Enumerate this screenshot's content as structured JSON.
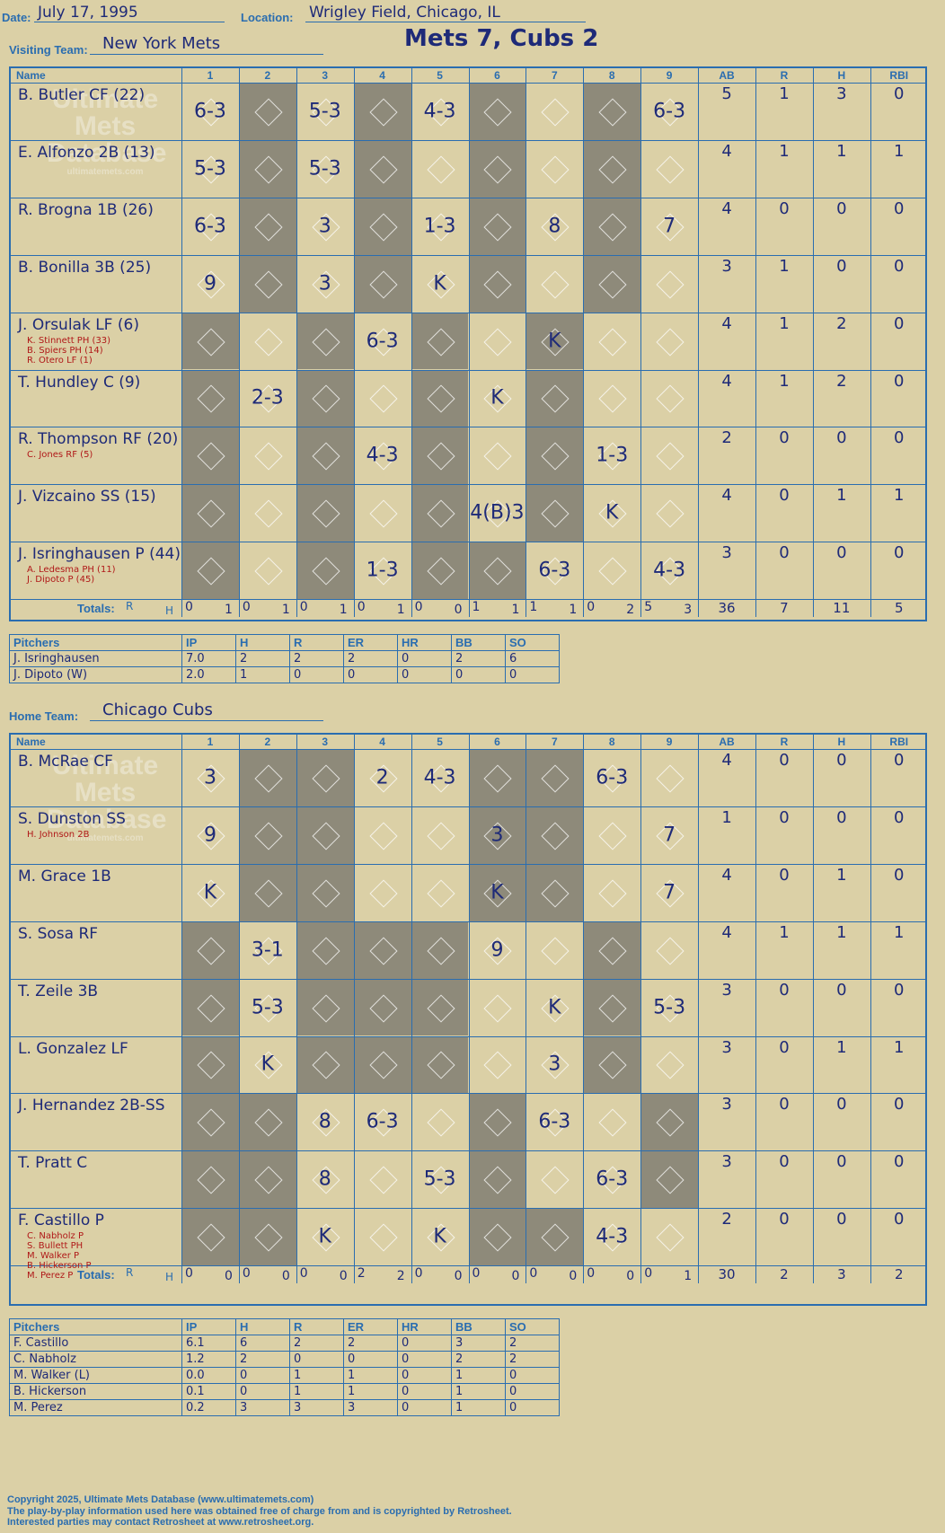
{
  "header": {
    "date_label": "Date:",
    "date": "July 17, 1995",
    "location_label": "Location:",
    "location": "Wrigley Field, Chicago, IL",
    "title": "Mets 7, Cubs 2"
  },
  "visiting": {
    "team_label": "Visiting Team:",
    "team": "New York Mets",
    "players": [
      {
        "name": "B. Butler CF (22)",
        "subs": [],
        "ab": "5",
        "r": "1",
        "h": "3",
        "rbi": "0"
      },
      {
        "name": "E. Alfonzo 2B (13)",
        "subs": [],
        "ab": "4",
        "r": "1",
        "h": "1",
        "rbi": "1"
      },
      {
        "name": "R. Brogna 1B (26)",
        "subs": [],
        "ab": "4",
        "r": "0",
        "h": "0",
        "rbi": "0"
      },
      {
        "name": "B. Bonilla 3B (25)",
        "subs": [],
        "ab": "3",
        "r": "1",
        "h": "0",
        "rbi": "0"
      },
      {
        "name": "J. Orsulak LF (6)",
        "subs": [
          "K. Stinnett PH (33)",
          "B. Spiers PH (14)",
          "R. Otero LF (1)"
        ],
        "ab": "4",
        "r": "1",
        "h": "2",
        "rbi": "0"
      },
      {
        "name": "T. Hundley C (9)",
        "subs": [],
        "ab": "4",
        "r": "1",
        "h": "2",
        "rbi": "0"
      },
      {
        "name": "R. Thompson RF (20)",
        "subs": [
          "C. Jones RF (5)"
        ],
        "ab": "2",
        "r": "0",
        "h": "0",
        "rbi": "0"
      },
      {
        "name": "J. Vizcaino SS (15)",
        "subs": [],
        "ab": "4",
        "r": "0",
        "h": "1",
        "rbi": "1"
      },
      {
        "name": "J. Isringhausen P (44)",
        "subs": [
          "A. Ledesma PH (11)",
          "J. Dipoto P (45)"
        ],
        "ab": "3",
        "r": "0",
        "h": "0",
        "rbi": "0"
      }
    ],
    "plays": [
      [
        0,
        0,
        "6-3"
      ],
      [
        0,
        2,
        "5-3"
      ],
      [
        0,
        4,
        "4-3"
      ],
      [
        0,
        8,
        "6-3"
      ],
      [
        1,
        0,
        "5-3"
      ],
      [
        1,
        2,
        "5-3"
      ],
      [
        2,
        0,
        "6-3"
      ],
      [
        2,
        2,
        "3"
      ],
      [
        2,
        4,
        "1-3"
      ],
      [
        2,
        6,
        "8"
      ],
      [
        2,
        8,
        "7"
      ],
      [
        3,
        0,
        "9"
      ],
      [
        3,
        2,
        "3"
      ],
      [
        3,
        4,
        "K"
      ],
      [
        4,
        3,
        "6-3"
      ],
      [
        4,
        6,
        "K"
      ],
      [
        5,
        1,
        "2-3"
      ],
      [
        5,
        5,
        "K"
      ],
      [
        6,
        3,
        "4-3"
      ],
      [
        6,
        7,
        "1-3"
      ],
      [
        7,
        5,
        "4(B)3"
      ],
      [
        7,
        7,
        "K"
      ],
      [
        8,
        3,
        "1-3"
      ],
      [
        8,
        6,
        "6-3"
      ],
      [
        8,
        8,
        "4-3"
      ]
    ],
    "totals": {
      "label": "Totals:",
      "ab": "36",
      "r": "7",
      "h": "11",
      "rbi": "5",
      "innings": [
        [
          "0",
          "1"
        ],
        [
          "0",
          "1"
        ],
        [
          "0",
          "1"
        ],
        [
          "0",
          "1"
        ],
        [
          "0",
          "0"
        ],
        [
          "1",
          "1"
        ],
        [
          "1",
          "1"
        ],
        [
          "0",
          "2"
        ],
        [
          "5",
          "3"
        ]
      ]
    },
    "pitchers": [
      {
        "name": "J. Isringhausen",
        "ip": "7.0",
        "h": "2",
        "r": "2",
        "er": "2",
        "hr": "0",
        "bb": "2",
        "so": "6"
      },
      {
        "name": "J. Dipoto (W)",
        "ip": "2.0",
        "h": "1",
        "r": "0",
        "er": "0",
        "hr": "0",
        "bb": "0",
        "so": "0"
      }
    ]
  },
  "home": {
    "team_label": "Home Team:",
    "team": "Chicago Cubs",
    "players": [
      {
        "name": "B. McRae CF",
        "subs": [],
        "ab": "4",
        "r": "0",
        "h": "0",
        "rbi": "0"
      },
      {
        "name": "S. Dunston SS",
        "subs": [
          "H. Johnson 2B"
        ],
        "ab": "1",
        "r": "0",
        "h": "0",
        "rbi": "0"
      },
      {
        "name": "M. Grace 1B",
        "subs": [],
        "ab": "4",
        "r": "0",
        "h": "1",
        "rbi": "0"
      },
      {
        "name": "S. Sosa RF",
        "subs": [],
        "ab": "4",
        "r": "1",
        "h": "1",
        "rbi": "1"
      },
      {
        "name": "T. Zeile 3B",
        "subs": [],
        "ab": "3",
        "r": "0",
        "h": "0",
        "rbi": "0"
      },
      {
        "name": "L. Gonzalez LF",
        "subs": [],
        "ab": "3",
        "r": "0",
        "h": "1",
        "rbi": "1"
      },
      {
        "name": "J. Hernandez 2B-SS",
        "subs": [],
        "ab": "3",
        "r": "0",
        "h": "0",
        "rbi": "0"
      },
      {
        "name": "T. Pratt C",
        "subs": [],
        "ab": "3",
        "r": "0",
        "h": "0",
        "rbi": "0"
      },
      {
        "name": "F. Castillo P",
        "subs": [
          "C. Nabholz P",
          "S. Bullett PH",
          "M. Walker P",
          "B. Hickerson P",
          "M. Perez P"
        ],
        "ab": "2",
        "r": "0",
        "h": "0",
        "rbi": "0"
      }
    ],
    "plays": [
      [
        0,
        0,
        "3"
      ],
      [
        0,
        3,
        "2"
      ],
      [
        0,
        4,
        "4-3"
      ],
      [
        0,
        7,
        "6-3"
      ],
      [
        1,
        0,
        "9"
      ],
      [
        1,
        5,
        "3"
      ],
      [
        1,
        8,
        "7"
      ],
      [
        2,
        0,
        "K"
      ],
      [
        2,
        5,
        "K"
      ],
      [
        2,
        8,
        "7"
      ],
      [
        3,
        1,
        "3-1"
      ],
      [
        3,
        5,
        "9"
      ],
      [
        4,
        1,
        "5-3"
      ],
      [
        4,
        6,
        "K"
      ],
      [
        4,
        8,
        "5-3"
      ],
      [
        5,
        1,
        "K"
      ],
      [
        5,
        6,
        "3"
      ],
      [
        6,
        2,
        "8"
      ],
      [
        6,
        3,
        "6-3"
      ],
      [
        6,
        6,
        "6-3"
      ],
      [
        7,
        2,
        "8"
      ],
      [
        7,
        4,
        "5-3"
      ],
      [
        7,
        7,
        "6-3"
      ],
      [
        8,
        2,
        "K"
      ],
      [
        8,
        4,
        "K"
      ],
      [
        8,
        7,
        "4-3"
      ]
    ],
    "totals": {
      "label": "Totals:",
      "ab": "30",
      "r": "2",
      "h": "3",
      "rbi": "2",
      "innings": [
        [
          "0",
          "0"
        ],
        [
          "0",
          "0"
        ],
        [
          "0",
          "0"
        ],
        [
          "2",
          "2"
        ],
        [
          "0",
          "0"
        ],
        [
          "0",
          "0"
        ],
        [
          "0",
          "0"
        ],
        [
          "0",
          "0"
        ],
        [
          "0",
          "1"
        ]
      ]
    },
    "pitchers": [
      {
        "name": "F. Castillo",
        "ip": "6.1",
        "h": "6",
        "r": "2",
        "er": "2",
        "hr": "0",
        "bb": "3",
        "so": "2"
      },
      {
        "name": "C. Nabholz",
        "ip": "1.2",
        "h": "2",
        "r": "0",
        "er": "0",
        "hr": "0",
        "bb": "2",
        "so": "2"
      },
      {
        "name": "M. Walker (L)",
        "ip": "0.0",
        "h": "0",
        "r": "1",
        "er": "1",
        "hr": "0",
        "bb": "1",
        "so": "0"
      },
      {
        "name": "B. Hickerson",
        "ip": "0.1",
        "h": "0",
        "r": "1",
        "er": "1",
        "hr": "0",
        "bb": "1",
        "so": "0"
      },
      {
        "name": "M. Perez",
        "ip": "0.2",
        "h": "3",
        "r": "3",
        "er": "3",
        "hr": "0",
        "bb": "1",
        "so": "0"
      }
    ]
  },
  "columns": {
    "name": "Name",
    "innings": [
      "1",
      "2",
      "3",
      "4",
      "5",
      "6",
      "7",
      "8",
      "9"
    ],
    "ab": "AB",
    "r": "R",
    "h": "H",
    "rbi": "RBI",
    "tot_r": "R",
    "tot_h": "H"
  },
  "pitcher_columns": {
    "name": "Pitchers",
    "ip": "IP",
    "h": "H",
    "r": "R",
    "er": "ER",
    "hr": "HR",
    "bb": "BB",
    "so": "SO"
  },
  "watermark": {
    "line1": "Ultimate",
    "line2": "Mets",
    "line3": "Database",
    "url": "ultimatemets.com"
  },
  "footer": {
    "line1": "Copyright 2025, Ultimate Mets Database (www.ultimatemets.com)",
    "line2": "The play-by-play information used here was obtained free of charge from and is copyrighted by Retrosheet.",
    "line3": "Interested parties may contact Retrosheet at www.retrosheet.org."
  }
}
